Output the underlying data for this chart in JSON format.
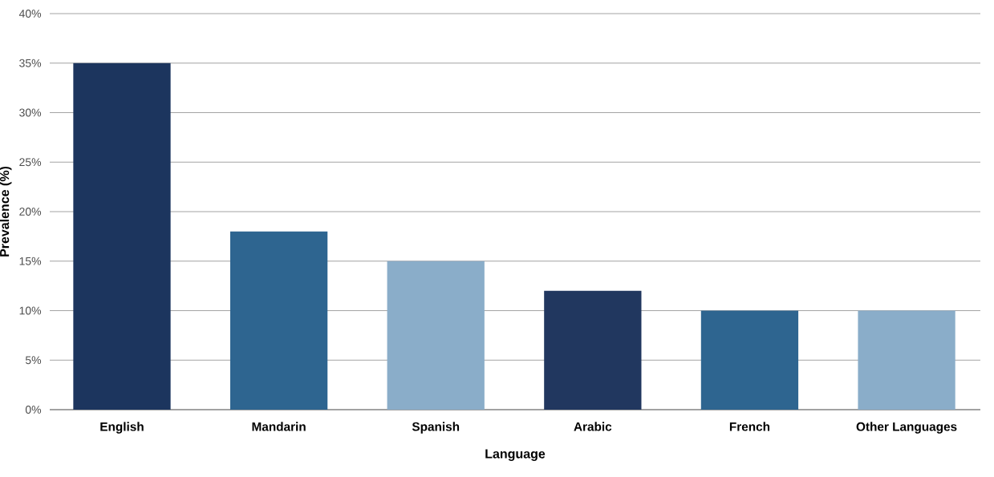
{
  "chart_data": {
    "type": "bar",
    "xlabel": "Language",
    "ylabel": "Prevalence (%)",
    "categories": [
      "English",
      "Mandarin",
      "Spanish",
      "Arabic",
      "French",
      "Other Languages"
    ],
    "values": [
      35,
      18,
      15,
      12,
      10,
      10
    ],
    "colors": [
      "#1c355e",
      "#2e6590",
      "#8aadc9",
      "#21375f",
      "#2e6590",
      "#8aadc9"
    ],
    "ylim": [
      0,
      40
    ],
    "yticks": [
      {
        "value": 0,
        "label": "0%"
      },
      {
        "value": 5,
        "label": "5%"
      },
      {
        "value": 10,
        "label": "10%"
      },
      {
        "value": 15,
        "label": "15%"
      },
      {
        "value": 20,
        "label": "20%"
      },
      {
        "value": 25,
        "label": "25%"
      },
      {
        "value": 30,
        "label": "30%"
      },
      {
        "value": 35,
        "label": "35%"
      },
      {
        "value": 40,
        "label": "40%"
      }
    ],
    "grid": "y"
  }
}
